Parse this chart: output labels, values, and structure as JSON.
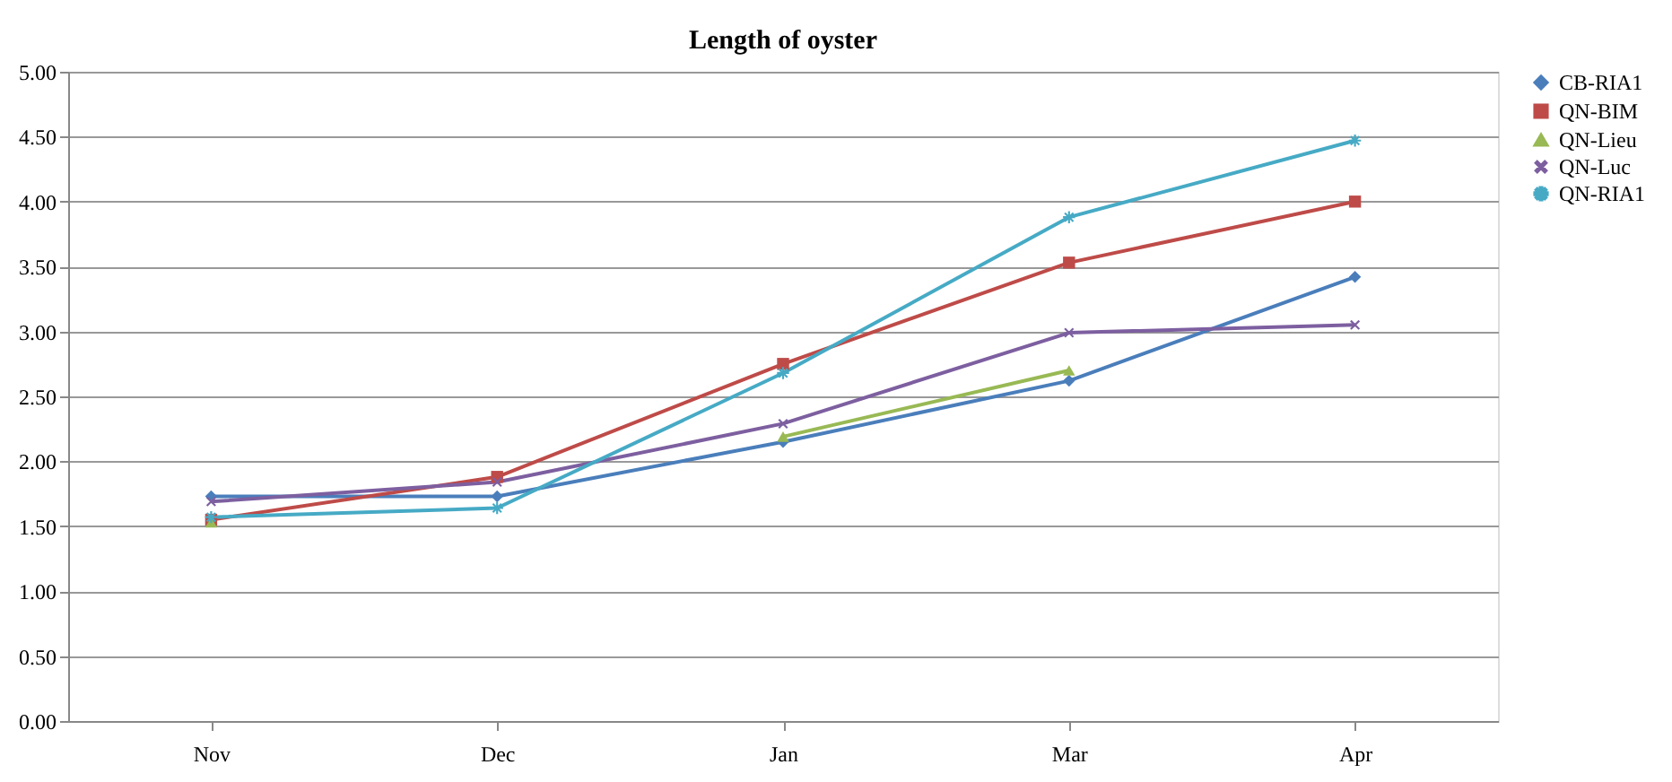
{
  "chart_data": {
    "type": "line",
    "title": "Length of oyster",
    "categories": [
      "Nov",
      "Dec",
      "Jan",
      "Mar",
      "Apr"
    ],
    "series": [
      {
        "name": "CB-RIA1",
        "color": "#4a7ebb",
        "marker": "diamond",
        "values": [
          1.73,
          1.73,
          2.15,
          2.62,
          3.42
        ]
      },
      {
        "name": "QN-BIM",
        "color": "#be4b48",
        "marker": "square",
        "values": [
          1.55,
          1.88,
          2.75,
          3.53,
          4.0
        ]
      },
      {
        "name": "QN-Lieu",
        "color": "#98b954",
        "marker": "triangle",
        "values": [
          1.53,
          null,
          2.19,
          2.7,
          null
        ]
      },
      {
        "name": "QN-Luc",
        "color": "#7d5fa0",
        "marker": "cross",
        "values": [
          1.69,
          1.84,
          2.29,
          2.99,
          3.05
        ]
      },
      {
        "name": "QN-RIA1",
        "color": "#46aac5",
        "marker": "star",
        "values": [
          1.57,
          1.64,
          2.68,
          3.88,
          4.47
        ]
      }
    ],
    "ylim": [
      0,
      5
    ],
    "yticks": [
      {
        "value": 0,
        "label": "0.00"
      },
      {
        "value": 0.5,
        "label": "0.50"
      },
      {
        "value": 1,
        "label": "1.00"
      },
      {
        "value": 1.5,
        "label": "1.50"
      },
      {
        "value": 2,
        "label": "2.00"
      },
      {
        "value": 2.5,
        "label": "2.50"
      },
      {
        "value": 3,
        "label": "3.00"
      },
      {
        "value": 3.5,
        "label": "3.50"
      },
      {
        "value": 4,
        "label": "4.00"
      },
      {
        "value": 4.5,
        "label": "4.50"
      },
      {
        "value": 5,
        "label": "5.00"
      }
    ],
    "grid": "y",
    "legend": "right",
    "line_style": "solid"
  }
}
